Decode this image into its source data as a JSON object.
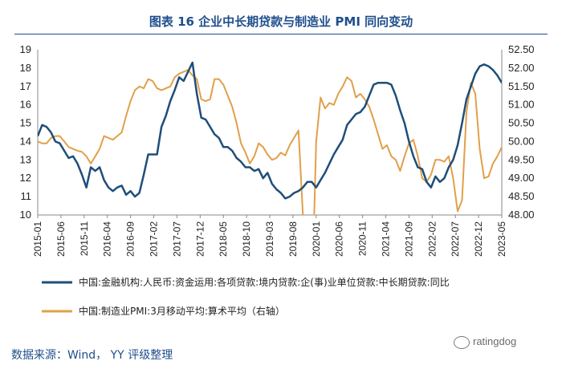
{
  "page": {
    "title": "图表 16 企业中长期贷款与制造业 PMI 同向变动",
    "source": "数据来源：Wind， YY 评级整理",
    "watermark": "ratingdog"
  },
  "chart_data": {
    "type": "line",
    "title": "图表 16 企业中长期贷款与制造业 PMI 同向变动",
    "y_left": {
      "min": 10,
      "max": 19,
      "ticks": [
        "10",
        "11",
        "12",
        "13",
        "14",
        "15",
        "16",
        "17",
        "18",
        "19"
      ]
    },
    "y_right": {
      "min": 48.0,
      "max": 52.5,
      "ticks": [
        "48.00",
        "48.50",
        "49.00",
        "49.50",
        "50.00",
        "50.50",
        "51.00",
        "51.50",
        "52.00",
        "52.50"
      ]
    },
    "x_labels": [
      "2015-01",
      "2015-06",
      "2015-11",
      "2016-04",
      "2016-09",
      "2017-02",
      "2017-07",
      "2017-12",
      "2018-05",
      "2018-10",
      "2019-03",
      "2019-08",
      "2020-01",
      "2020-06",
      "2020-11",
      "2021-04",
      "2021-09",
      "2022-02",
      "2022-07",
      "2022-12",
      "2023-05"
    ],
    "x_range": [
      0,
      105
    ],
    "series": [
      {
        "name": "中国:金融机构:人民币:资金运用:各项贷款:境内贷款:企(事)业单位贷款:中长期贷款:同比",
        "axis": "left",
        "color": "#1f4e79",
        "points": [
          [
            0,
            14.3
          ],
          [
            1,
            14.9
          ],
          [
            2,
            14.8
          ],
          [
            3,
            14.5
          ],
          [
            4,
            14.0
          ],
          [
            5,
            13.9
          ],
          [
            6,
            13.5
          ],
          [
            7,
            13.1
          ],
          [
            8,
            13.2
          ],
          [
            9,
            12.8
          ],
          [
            10,
            12.2
          ],
          [
            11,
            11.5
          ],
          [
            12,
            12.6
          ],
          [
            13,
            12.4
          ],
          [
            14,
            12.6
          ],
          [
            15,
            11.9
          ],
          [
            16,
            11.5
          ],
          [
            17,
            11.3
          ],
          [
            18,
            11.5
          ],
          [
            19,
            11.6
          ],
          [
            20,
            11.1
          ],
          [
            21,
            11.3
          ],
          [
            22,
            11.0
          ],
          [
            23,
            11.2
          ],
          [
            24,
            12.2
          ],
          [
            25,
            13.3
          ],
          [
            26,
            13.3
          ],
          [
            27,
            13.3
          ],
          [
            28,
            14.8
          ],
          [
            29,
            15.4
          ],
          [
            30,
            16.2
          ],
          [
            31,
            16.8
          ],
          [
            32,
            17.5
          ],
          [
            33,
            17.3
          ],
          [
            34,
            17.8
          ],
          [
            35,
            18.3
          ],
          [
            36,
            16.6
          ],
          [
            37,
            15.3
          ],
          [
            38,
            15.2
          ],
          [
            39,
            14.8
          ],
          [
            40,
            14.4
          ],
          [
            41,
            14.2
          ],
          [
            42,
            13.7
          ],
          [
            43,
            13.7
          ],
          [
            44,
            13.5
          ],
          [
            45,
            13.1
          ],
          [
            46,
            12.9
          ],
          [
            47,
            12.6
          ],
          [
            48,
            12.6
          ],
          [
            49,
            12.4
          ],
          [
            50,
            12.5
          ],
          [
            51,
            12.0
          ],
          [
            52,
            12.3
          ],
          [
            53,
            11.7
          ],
          [
            54,
            11.4
          ],
          [
            55,
            11.2
          ],
          [
            56,
            10.9
          ],
          [
            57,
            11.0
          ],
          [
            58,
            11.2
          ],
          [
            59,
            11.3
          ],
          [
            60,
            11.5
          ],
          [
            61,
            11.8
          ],
          [
            62,
            11.8
          ],
          [
            63,
            11.5
          ],
          [
            64,
            11.9
          ],
          [
            65,
            12.3
          ],
          [
            66,
            12.8
          ],
          [
            67,
            13.3
          ],
          [
            68,
            13.7
          ],
          [
            69,
            14.1
          ],
          [
            70,
            14.9
          ],
          [
            71,
            15.2
          ],
          [
            72,
            15.5
          ],
          [
            73,
            15.6
          ],
          [
            74,
            15.9
          ],
          [
            75,
            16.5
          ],
          [
            76,
            17.1
          ],
          [
            77,
            17.2
          ],
          [
            78,
            17.2
          ],
          [
            79,
            17.2
          ],
          [
            80,
            17.1
          ],
          [
            81,
            16.5
          ],
          [
            82,
            15.7
          ],
          [
            83,
            15.0
          ],
          [
            84,
            14.0
          ],
          [
            85,
            13.2
          ],
          [
            86,
            12.6
          ],
          [
            87,
            12.5
          ],
          [
            88,
            11.8
          ],
          [
            89,
            11.5
          ],
          [
            90,
            12.1
          ],
          [
            91,
            11.8
          ],
          [
            92,
            12.0
          ],
          [
            93,
            12.6
          ],
          [
            94,
            13.0
          ],
          [
            95,
            13.8
          ],
          [
            96,
            15.0
          ],
          [
            97,
            16.3
          ],
          [
            98,
            17.0
          ],
          [
            99,
            17.7
          ],
          [
            100,
            18.1
          ],
          [
            101,
            18.2
          ],
          [
            102,
            18.1
          ],
          [
            103,
            17.9
          ],
          [
            104,
            17.6
          ],
          [
            105,
            17.2
          ]
        ]
      },
      {
        "name": "中国:制造业PMI:3月移动平均:算术平均（右轴）",
        "axis": "right",
        "color": "#e0a04a",
        "points": [
          [
            0,
            50.0
          ],
          [
            1,
            49.95
          ],
          [
            2,
            49.95
          ],
          [
            3,
            50.1
          ],
          [
            4,
            50.15
          ],
          [
            5,
            50.15
          ],
          [
            6,
            50.0
          ],
          [
            7,
            49.85
          ],
          [
            8,
            49.8
          ],
          [
            9,
            49.75
          ],
          [
            10,
            49.72
          ],
          [
            11,
            49.6
          ],
          [
            12,
            49.4
          ],
          [
            13,
            49.6
          ],
          [
            14,
            49.8
          ],
          [
            15,
            50.15
          ],
          [
            16,
            50.1
          ],
          [
            17,
            50.05
          ],
          [
            18,
            50.15
          ],
          [
            19,
            50.25
          ],
          [
            20,
            50.7
          ],
          [
            21,
            51.1
          ],
          [
            22,
            51.4
          ],
          [
            23,
            51.5
          ],
          [
            24,
            51.45
          ],
          [
            25,
            51.7
          ],
          [
            26,
            51.65
          ],
          [
            27,
            51.45
          ],
          [
            28,
            51.4
          ],
          [
            29,
            51.45
          ],
          [
            30,
            51.5
          ],
          [
            31,
            51.75
          ],
          [
            32,
            51.85
          ],
          [
            33,
            51.9
          ],
          [
            34,
            51.95
          ],
          [
            35,
            51.8
          ],
          [
            36,
            51.7
          ],
          [
            37,
            51.15
          ],
          [
            38,
            51.1
          ],
          [
            39,
            51.15
          ],
          [
            40,
            51.7
          ],
          [
            41,
            51.7
          ],
          [
            42,
            51.55
          ],
          [
            43,
            51.25
          ],
          [
            44,
            50.95
          ],
          [
            45,
            50.5
          ],
          [
            46,
            49.95
          ],
          [
            47,
            49.7
          ],
          [
            48,
            49.4
          ],
          [
            49,
            49.6
          ],
          [
            50,
            49.95
          ],
          [
            51,
            49.85
          ],
          [
            52,
            49.65
          ],
          [
            53,
            49.5
          ],
          [
            54,
            49.55
          ],
          [
            55,
            49.7
          ],
          [
            56,
            49.62
          ],
          [
            57,
            49.9
          ],
          [
            58,
            50.1
          ],
          [
            59,
            50.3
          ],
          [
            60,
            48.0
          ],
          [
            61,
            45.6
          ],
          [
            62,
            45.5
          ],
          [
            63,
            50.0
          ],
          [
            64,
            51.2
          ],
          [
            65,
            50.9
          ],
          [
            66,
            51.05
          ],
          [
            67,
            51.0
          ],
          [
            68,
            51.3
          ],
          [
            69,
            51.5
          ],
          [
            70,
            51.75
          ],
          [
            71,
            51.65
          ],
          [
            72,
            51.2
          ],
          [
            73,
            51.3
          ],
          [
            74,
            51.15
          ],
          [
            75,
            50.95
          ],
          [
            76,
            50.6
          ],
          [
            77,
            50.2
          ],
          [
            78,
            49.8
          ],
          [
            79,
            49.9
          ],
          [
            80,
            49.6
          ],
          [
            81,
            49.5
          ],
          [
            82,
            49.2
          ],
          [
            83,
            49.6
          ],
          [
            84,
            49.95
          ],
          [
            85,
            50.05
          ],
          [
            86,
            49.6
          ],
          [
            87,
            49.0
          ],
          [
            88,
            48.9
          ],
          [
            89,
            49.1
          ],
          [
            90,
            49.5
          ],
          [
            91,
            49.5
          ],
          [
            92,
            49.45
          ],
          [
            93,
            49.6
          ],
          [
            94,
            49.0
          ],
          [
            95,
            48.1
          ],
          [
            96,
            48.4
          ],
          [
            97,
            50.8
          ],
          [
            98,
            51.6
          ],
          [
            99,
            51.3
          ],
          [
            100,
            49.8
          ],
          [
            101,
            49.0
          ],
          [
            102,
            49.05
          ],
          [
            103,
            49.4
          ],
          [
            104,
            49.6
          ],
          [
            105,
            49.85
          ]
        ]
      }
    ],
    "legend": [
      "中国:金融机构:人民币:资金运用:各项贷款:境内贷款:企(事)业单位贷款:中长期贷款:同比",
      "中国:制造业PMI:3月移动平均:算术平均（右轴）"
    ]
  }
}
